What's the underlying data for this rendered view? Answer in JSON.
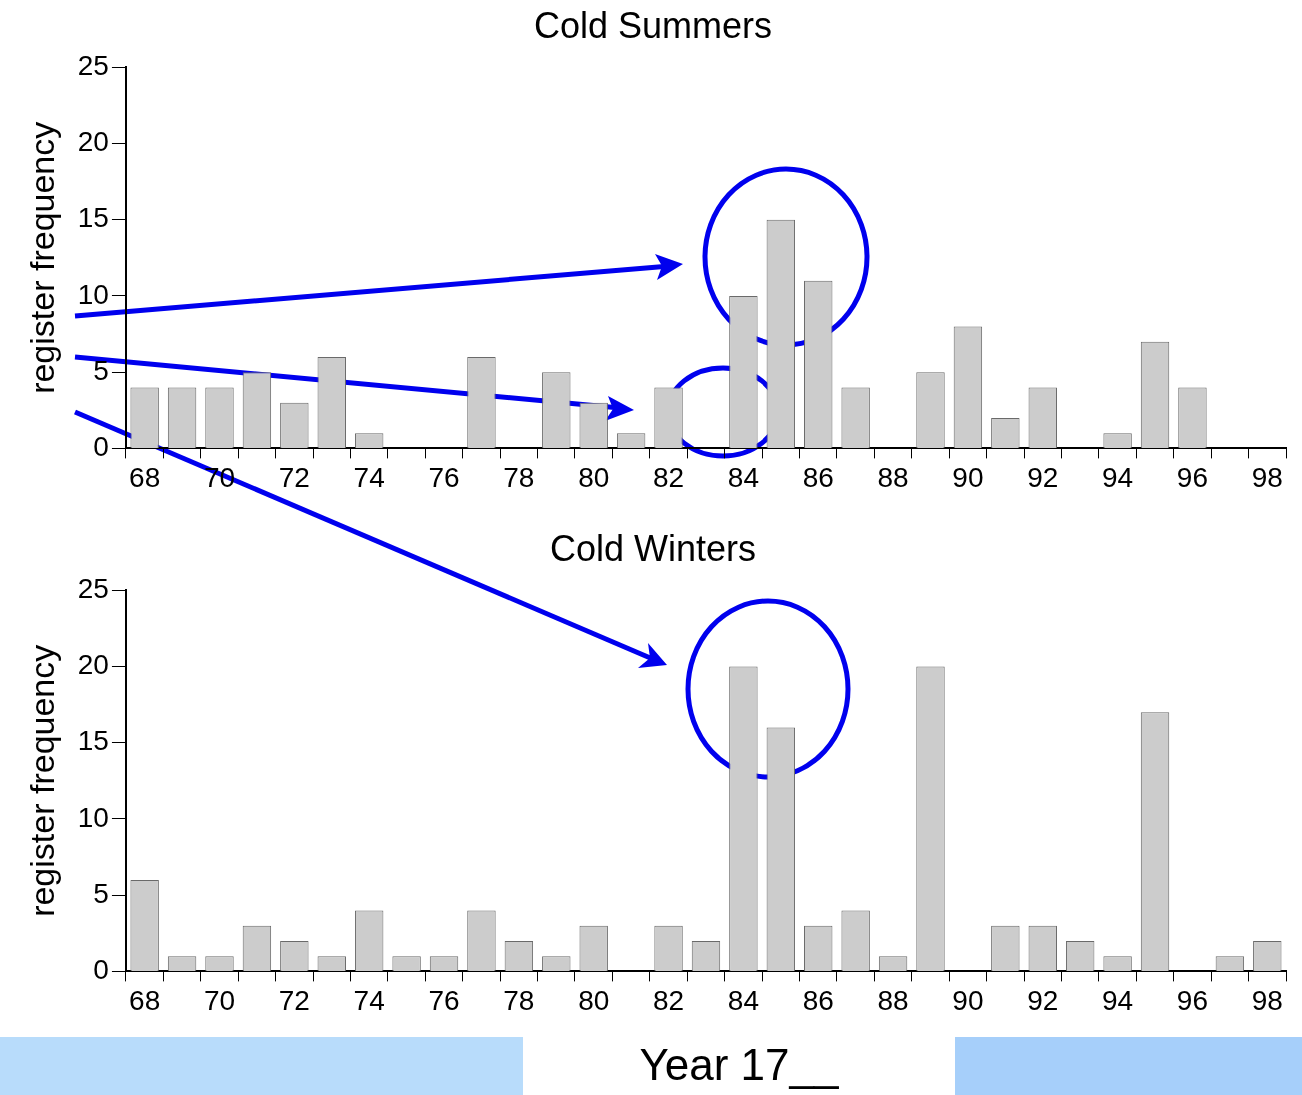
{
  "chart_data": [
    {
      "type": "bar",
      "title": "Cold Summers",
      "ylabel": "register frequency",
      "categories": [
        "68",
        null,
        "70",
        null,
        "72",
        null,
        "74",
        null,
        "76",
        null,
        "78",
        null,
        "80",
        null,
        "82",
        null,
        "84",
        null,
        "86",
        null,
        "88",
        null,
        "90",
        null,
        "92",
        null,
        "94",
        null,
        "96",
        null,
        "98"
      ],
      "values": [
        4,
        4,
        4,
        5,
        3,
        6,
        1,
        0,
        0,
        6,
        0,
        5,
        3,
        1,
        4,
        0,
        10,
        15,
        11,
        4,
        0,
        5,
        8,
        2,
        4,
        0,
        1,
        7,
        4,
        0,
        0
      ],
      "color": "#cccccc",
      "ylim": [
        0,
        25
      ],
      "yticks": [
        0,
        5,
        10,
        15,
        20,
        25
      ],
      "grid": false,
      "legend": false
    },
    {
      "type": "bar",
      "title": "Cold Winters",
      "ylabel": "register frequency",
      "xlabel": "Year 17__",
      "categories": [
        "68",
        null,
        "70",
        null,
        "72",
        null,
        "74",
        null,
        "76",
        null,
        "78",
        null,
        "80",
        null,
        "82",
        null,
        "84",
        null,
        "86",
        null,
        "88",
        null,
        "90",
        null,
        "92",
        null,
        "94",
        null,
        "96",
        null,
        "98"
      ],
      "values": [
        6,
        1,
        1,
        3,
        2,
        1,
        4,
        1,
        1,
        4,
        2,
        1,
        3,
        0,
        3,
        2,
        20,
        16,
        3,
        4,
        1,
        20,
        0,
        3,
        3,
        2,
        1,
        17,
        0,
        1,
        2
      ],
      "color": "#cccccc",
      "ylim": [
        0,
        25
      ],
      "yticks": [
        0,
        5,
        10,
        15,
        20,
        25
      ],
      "grid": false,
      "legend": false
    }
  ]
}
